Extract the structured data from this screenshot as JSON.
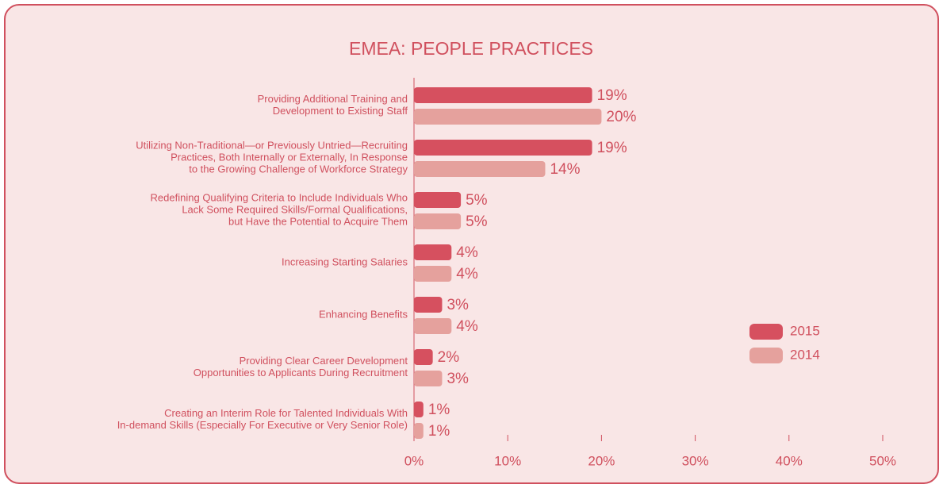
{
  "chart_data": {
    "type": "hbar",
    "title": "EMEA: PEOPLE PRACTICES",
    "categories": [
      [
        "Providing Additional Training and",
        "Development to Existing Staff"
      ],
      [
        "Utilizing Non-Traditional—or Previously Untried—Recruiting",
        "Practices, Both Internally or Externally, In Response",
        "to the Growing Challenge of Workforce Strategy"
      ],
      [
        "Redefining Qualifying Criteria to Include  Individuals Who",
        "Lack Some Required Skills/Formal Qualifications,",
        "but Have the Potential to Acquire Them"
      ],
      [
        "Increasing Starting Salaries"
      ],
      [
        "Enhancing Benefits"
      ],
      [
        "Providing Clear Career Development",
        "Opportunities to Applicants During Recruitment"
      ],
      [
        "Creating an Interim Role for Talented Individuals With",
        "In-demand Skills (Especially For Executive or Very Senior Role)"
      ]
    ],
    "series": [
      {
        "name": "2015",
        "color": "#d6505f",
        "values": [
          19,
          19,
          5,
          4,
          3,
          2,
          1
        ],
        "value_labels": [
          "19%",
          "19%",
          "5%",
          "4%",
          "3%",
          "2%",
          "1%"
        ]
      },
      {
        "name": "2014",
        "color": "#e5a19d",
        "values": [
          20,
          14,
          5,
          4,
          4,
          3,
          1
        ],
        "value_labels": [
          "20%",
          "14%",
          "5%",
          "4%",
          "4%",
          "3%",
          "1%"
        ]
      }
    ],
    "xlim": [
      0,
      50
    ],
    "xticks": [
      {
        "value": 0,
        "label": "0%"
      },
      {
        "value": 10,
        "label": "10%"
      },
      {
        "value": 20,
        "label": "20%"
      },
      {
        "value": 30,
        "label": "30%"
      },
      {
        "value": 40,
        "label": "40%"
      },
      {
        "value": 50,
        "label": "50%"
      }
    ],
    "legend": "right"
  }
}
